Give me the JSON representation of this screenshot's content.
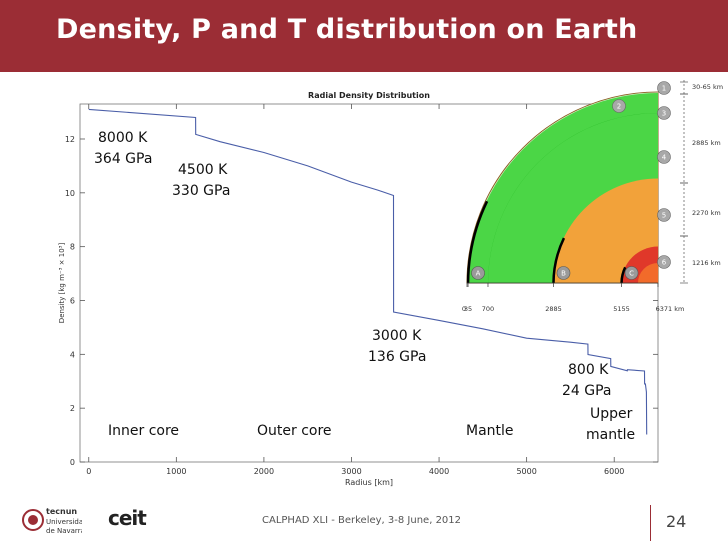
{
  "slide": {
    "title": "Density, P and T distribution on Earth",
    "footer": "CALPHAD XLI - Berkeley, 3-8 June, 2012",
    "page_number": "24",
    "accent_color": "#9b2d35"
  },
  "logos": {
    "left_text": [
      "tecnun",
      "Universidad",
      "de Navarra"
    ],
    "right_text": "ceit"
  },
  "annotations": [
    {
      "line1": "8000 K",
      "line2": "364 GPa"
    },
    {
      "line1": "4500 K",
      "line2": "330 GPa"
    },
    {
      "line1": "3000 K",
      "line2": "136 GPa"
    },
    {
      "line1": "800 K",
      "line2": "24 GPa"
    },
    {
      "line1": "Upper",
      "line2": "mantle"
    }
  ],
  "regions": [
    "Inner core",
    "Outer core",
    "Mantle"
  ],
  "chart_data": {
    "type": "line",
    "title": "Radial Density Distribution",
    "xlabel": "Radius [km]",
    "ylabel": "Density [kg m⁻³ × 10³]",
    "xlim": [
      -100,
      6500
    ],
    "ylim": [
      0,
      13.3
    ],
    "xticks": [
      0,
      1000,
      2000,
      3000,
      4000,
      5000,
      6000
    ],
    "yticks": [
      0,
      2,
      4,
      6,
      8,
      10,
      12
    ],
    "series": [
      {
        "x": [
          0,
          1220,
          1221,
          1500,
          2000,
          2500,
          3000,
          3300,
          3480,
          3481,
          4000,
          4500,
          5000,
          5500,
          5700,
          5701,
          5960,
          5961,
          6150,
          6151,
          6346,
          6347,
          6356,
          6368,
          6371
        ],
        "y": [
          13.1,
          12.8,
          12.17,
          11.9,
          11.5,
          11.0,
          10.4,
          10.1,
          9.9,
          5.57,
          5.26,
          4.95,
          4.6,
          4.45,
          4.38,
          3.99,
          3.84,
          3.55,
          3.39,
          3.43,
          3.38,
          2.9,
          2.9,
          2.6,
          1.02
        ]
      }
    ]
  },
  "inset": {
    "depth_labels": [
      "0",
      "35",
      "700",
      "2885",
      "5155",
      "6371 km"
    ],
    "boundary_labels": [
      "A",
      "B",
      "C"
    ],
    "layer_numbers": [
      "1",
      "2",
      "3",
      "4",
      "5",
      "6"
    ],
    "thickness_labels": [
      "30-65 km",
      "2885 km",
      "2270 km",
      "1216 km"
    ],
    "colors": {
      "crust": "#d98a2a",
      "upper_mantle": "#c8f0c0",
      "mantle": "#4bd646",
      "outer_core": "#f2a23a",
      "inner_core": "#e0382a"
    }
  }
}
